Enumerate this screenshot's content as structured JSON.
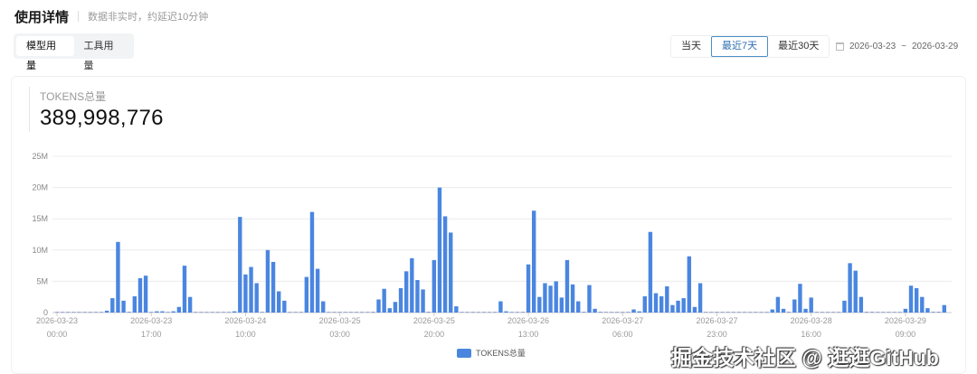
{
  "header": {
    "title": "使用详情",
    "subtitle": "数据非实时，约延迟10分钟"
  },
  "tabs": [
    {
      "label": "模型用量",
      "active": true
    },
    {
      "label": "工具用量",
      "active": false
    }
  ],
  "range_buttons": [
    {
      "label": "当天",
      "active": false
    },
    {
      "label": "最近7天",
      "active": true
    },
    {
      "label": "最近30天",
      "active": false
    }
  ],
  "date_range": {
    "start": "2026-03-23",
    "separator": "~",
    "end": "2026-03-29",
    "icon": "calendar-icon"
  },
  "stat": {
    "label": "TOKENS总量",
    "value": "389,998,776"
  },
  "watermark": "掘金技术社区 @ 逛逛GitHub",
  "colors": {
    "bar": "#4a86e0",
    "accent": "#2f6fb3"
  },
  "chart_data": {
    "type": "bar",
    "title": "",
    "xlabel": "",
    "ylabel": "",
    "ylim": [
      0,
      25000000
    ],
    "y_ticks": [
      "0",
      "5M",
      "10M",
      "15M",
      "20M",
      "25M"
    ],
    "grid": true,
    "legend_position": "bottom",
    "x_ticks": [
      [
        "2026-03-23",
        "00:00"
      ],
      [
        "2026-03-23",
        "17:00"
      ],
      [
        "2026-03-24",
        "10:00"
      ],
      [
        "2026-03-25",
        "03:00"
      ],
      [
        "2026-03-25",
        "20:00"
      ],
      [
        "2026-03-26",
        "13:00"
      ],
      [
        "2026-03-27",
        "06:00"
      ],
      [
        "2026-03-27",
        "23:00"
      ],
      [
        "2026-03-28",
        "16:00"
      ],
      [
        "2026-03-29",
        "09:00"
      ]
    ],
    "series": [
      {
        "name": "TOKENS总量",
        "values": [
          50000,
          50000,
          50000,
          50000,
          50000,
          50000,
          50000,
          50000,
          50000,
          300000,
          2300000,
          11300000,
          1900000,
          100000,
          2600000,
          5500000,
          5900000,
          50000,
          200000,
          200000,
          50000,
          200000,
          900000,
          7500000,
          2500000,
          50000,
          50000,
          50000,
          50000,
          50000,
          50000,
          50000,
          200000,
          15300000,
          6100000,
          7300000,
          4700000,
          50000,
          10000000,
          8100000,
          3400000,
          1900000,
          50000,
          50000,
          50000,
          5700000,
          16100000,
          7000000,
          1800000,
          50000,
          50000,
          50000,
          50000,
          50000,
          50000,
          50000,
          50000,
          100000,
          2100000,
          3800000,
          700000,
          1700000,
          3900000,
          6600000,
          8700000,
          5200000,
          3700000,
          100000,
          8400000,
          20000000,
          15400000,
          12800000,
          1000000,
          50000,
          50000,
          50000,
          50000,
          50000,
          50000,
          50000,
          1800000,
          200000,
          50000,
          50000,
          50000,
          7700000,
          16300000,
          2500000,
          4700000,
          4300000,
          5000000,
          2400000,
          8400000,
          4500000,
          1800000,
          100000,
          4400000,
          600000,
          100000,
          50000,
          50000,
          50000,
          50000,
          50000,
          500000,
          200000,
          2600000,
          12900000,
          3100000,
          2600000,
          4200000,
          1200000,
          1900000,
          2300000,
          9000000,
          900000,
          4700000,
          50000,
          50000,
          50000,
          50000,
          50000,
          50000,
          50000,
          50000,
          50000,
          50000,
          50000,
          50000,
          500000,
          2500000,
          600000,
          100000,
          2100000,
          4600000,
          600000,
          2400000,
          50000,
          50000,
          50000,
          50000,
          50000,
          1900000,
          7900000,
          6700000,
          2500000,
          100000,
          100000,
          50000,
          50000,
          50000,
          50000,
          50000,
          600000,
          4300000,
          3900000,
          2500000,
          700000,
          100000,
          100000,
          1200000
        ]
      }
    ]
  }
}
